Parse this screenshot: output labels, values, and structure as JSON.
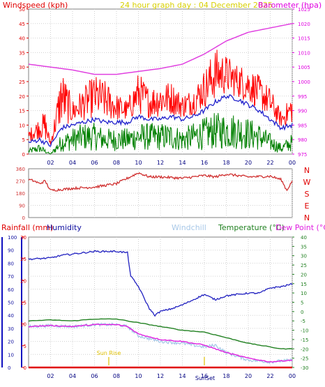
{
  "header": {
    "windspeed_title": "Windspeed (kph)",
    "graph_title": "24 hour graph day : 04 December 2025",
    "barometer_title": "Barometer (hpa)"
  },
  "bottom_header": {
    "rainfall": "Rainfall (mm)",
    "humidity": "Humidity",
    "windchill": "Windchill",
    "temperature": "Temperature (°C)",
    "dewpoint": "Dew Point (°C)"
  },
  "events": {
    "sunrise": "Sun Rise",
    "sunset": "SunSet"
  },
  "colors": {
    "windspeed": "#ff0000",
    "windspeed_avg": "#2020cc",
    "wind_low": "#008000",
    "barometer": "#e040e0",
    "direction": "#d03030",
    "humidity": "#2020c0",
    "windchill": "#a8c8e8",
    "temperature": "#208020",
    "dewpoint": "#e020e0",
    "rainfall": "#e00000",
    "events": "#e0c000"
  },
  "chart_data": [
    {
      "type": "line",
      "panel": "wind-barometer",
      "x_ticks": [
        "02",
        "04",
        "06",
        "08",
        "10",
        "12",
        "14",
        "16",
        "18",
        "20",
        "22",
        "00"
      ],
      "y_left_ticks": [
        "0",
        "5",
        "10",
        "15",
        "20",
        "25",
        "30",
        "35",
        "40",
        "45",
        "50"
      ],
      "y_left_lim": [
        0,
        50
      ],
      "y_right_ticks": [
        "975",
        "980",
        "985",
        "990",
        "995",
        "1000",
        "1005",
        "1010",
        "1015",
        "1020",
        "1025"
      ],
      "y_right_lim": [
        975,
        1025
      ],
      "series": [
        {
          "key": "gust",
          "hours": [
            0,
            1,
            1.5,
            2,
            3,
            4,
            5,
            6,
            7,
            8,
            9,
            10,
            11,
            12,
            13,
            14,
            15,
            16,
            17,
            18,
            19,
            20,
            21,
            22,
            23,
            24
          ],
          "values": [
            8,
            12,
            14,
            4,
            28,
            18,
            22,
            26,
            24,
            20,
            18,
            27,
            22,
            24,
            24,
            20,
            22,
            28,
            35,
            33,
            30,
            29,
            26,
            22,
            14,
            20
          ]
        },
        {
          "key": "average",
          "hours": [
            0,
            1,
            1.5,
            2,
            3,
            4,
            5,
            6,
            7,
            8,
            9,
            10,
            11,
            12,
            13,
            14,
            15,
            16,
            17,
            18,
            19,
            20,
            21,
            22,
            23,
            24
          ],
          "values": [
            4,
            5,
            4,
            3,
            9,
            10,
            11,
            12,
            11,
            11,
            11,
            13,
            12,
            12,
            13,
            12,
            13,
            15,
            18,
            20,
            19,
            17,
            15,
            12,
            9,
            10
          ]
        },
        {
          "key": "lull",
          "hours": [
            0,
            1,
            1.5,
            2,
            3,
            4,
            5,
            6,
            7,
            8,
            9,
            10,
            11,
            12,
            13,
            14,
            15,
            16,
            17,
            18,
            19,
            20,
            21,
            22,
            23,
            24
          ],
          "values": [
            1,
            2,
            1,
            0,
            4,
            5,
            6,
            6,
            5,
            5,
            5,
            6,
            6,
            6,
            6,
            5,
            6,
            7,
            8,
            8,
            8,
            7,
            6,
            4,
            2,
            4
          ]
        },
        {
          "key": "barometer",
          "hours": [
            0,
            2,
            4,
            6,
            8,
            10,
            12,
            14,
            16,
            18,
            20,
            22,
            24
          ],
          "values": [
            1006,
            1005,
            1004,
            1002.5,
            1002.5,
            1003.5,
            1004.5,
            1006,
            1009.5,
            1014,
            1017,
            1018.5,
            1020
          ]
        }
      ]
    },
    {
      "type": "line",
      "panel": "wind-direction",
      "y_ticks": [
        "360",
        "270",
        "180",
        "90",
        "0"
      ],
      "y_lim": [
        0,
        360
      ],
      "compass": [
        "N",
        "W",
        "S",
        "E",
        "N"
      ],
      "series": [
        {
          "key": "direction",
          "hours": [
            0,
            0.5,
            1,
            1.5,
            2,
            4,
            6,
            8,
            9,
            10,
            11,
            12,
            14,
            16,
            17,
            18,
            20,
            22,
            23,
            23.5,
            24
          ],
          "values": [
            280,
            270,
            250,
            270,
            200,
            215,
            225,
            250,
            290,
            330,
            300,
            300,
            290,
            310,
            300,
            320,
            300,
            305,
            280,
            200,
            270
          ]
        }
      ]
    },
    {
      "type": "line",
      "panel": "temperature-humidity",
      "x_ticks": [
        "02",
        "04",
        "06",
        "08",
        "10",
        "12",
        "14",
        "16",
        "18",
        "20",
        "22",
        "00"
      ],
      "rain_ticks": [
        "0",
        "5",
        "10",
        "15",
        "20",
        "25",
        "30"
      ],
      "rain_lim": [
        0,
        30
      ],
      "humidity_ticks": [
        "0",
        "10",
        "20",
        "30",
        "40",
        "50",
        "60",
        "70",
        "80",
        "90",
        "100"
      ],
      "humidity_lim": [
        0,
        100
      ],
      "temp_ticks": [
        "-30",
        "-25",
        "-20",
        "-15",
        "-10",
        "-5",
        "0",
        "5",
        "10",
        "15",
        "20",
        "25",
        "30",
        "35",
        "40"
      ],
      "temp_lim": [
        -30,
        40
      ],
      "series": [
        {
          "key": "humidity",
          "hours": [
            0,
            2,
            3,
            4,
            6,
            8,
            9,
            9.3,
            10,
            11,
            11.5,
            12,
            13,
            14,
            16,
            17,
            18,
            19,
            20,
            21,
            22,
            23,
            24
          ],
          "values": [
            83,
            84,
            86,
            87,
            89,
            89,
            88,
            70,
            62,
            45,
            40,
            43,
            45,
            48,
            56,
            52,
            55,
            56,
            57,
            57,
            61,
            62,
            64
          ]
        },
        {
          "key": "temperature",
          "hours": [
            0,
            2,
            4,
            6,
            8,
            10,
            12,
            14,
            16,
            18,
            20,
            22,
            23,
            24
          ],
          "values": [
            -5,
            -4.5,
            -5,
            -4,
            -4,
            -6,
            -8,
            -10,
            -11,
            -14,
            -17,
            -19,
            -20,
            -20
          ]
        },
        {
          "key": "windchill",
          "hours": [
            0,
            2,
            4,
            6,
            8,
            9,
            10,
            12,
            14,
            16,
            17,
            18,
            20,
            22,
            24
          ],
          "values": [
            -8,
            -7.5,
            -8,
            -7,
            -7,
            -8,
            -13,
            -16,
            -17,
            -19,
            -18,
            -22,
            -26,
            -27,
            -26
          ]
        },
        {
          "key": "dewpoint",
          "hours": [
            0,
            2,
            4,
            6,
            8,
            9,
            10,
            12,
            14,
            16,
            18,
            20,
            22,
            24
          ],
          "values": [
            -8,
            -7.5,
            -8,
            -7,
            -7,
            -8,
            -12,
            -15,
            -16,
            -18,
            -22,
            -25,
            -27,
            -26
          ]
        },
        {
          "key": "rainfall",
          "hours": [
            0,
            24
          ],
          "values": [
            0,
            0
          ]
        }
      ],
      "events": [
        {
          "key": "sunrise",
          "hour": 7.3
        },
        {
          "key": "sunset",
          "hour": 16.0
        }
      ]
    }
  ]
}
